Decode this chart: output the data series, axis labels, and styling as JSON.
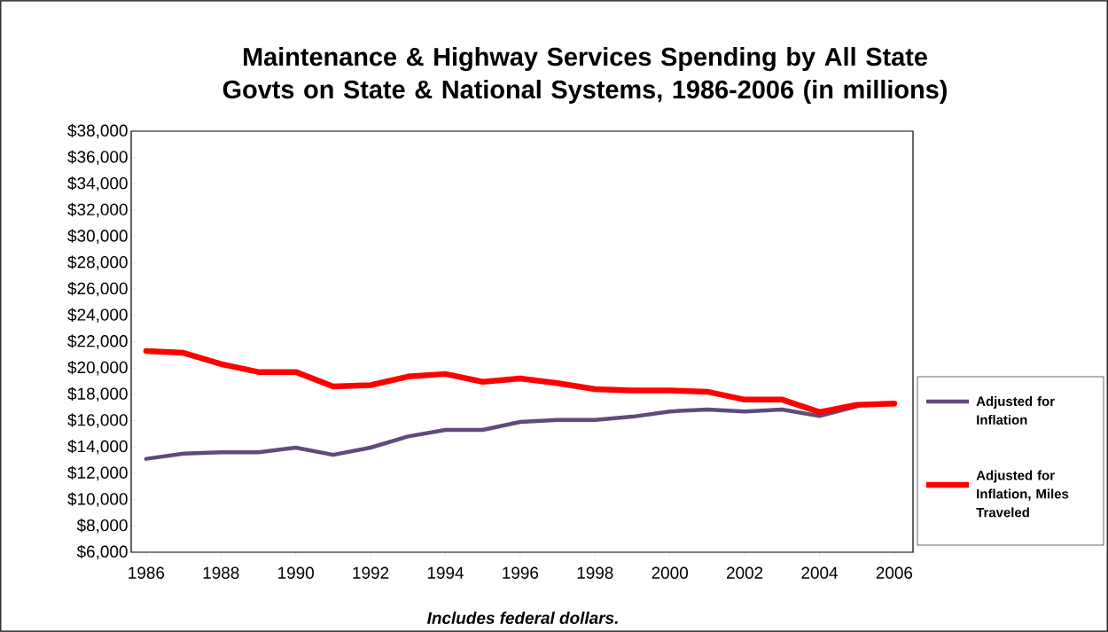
{
  "chart_data": {
    "type": "line",
    "title": "Maintenance & Highway Services Spending by All State Govts on State & National Systems, 1986-2006 (in millions)",
    "x": [
      1986,
      1987,
      1988,
      1989,
      1990,
      1991,
      1992,
      1993,
      1994,
      1995,
      1996,
      1997,
      1998,
      1999,
      2000,
      2001,
      2002,
      2003,
      2004,
      2005,
      2006
    ],
    "series": [
      {
        "name": "Adjusted for Inflation",
        "color": "#604a7b",
        "values": [
          13100,
          13500,
          13600,
          13600,
          13950,
          13400,
          13950,
          14800,
          15300,
          15300,
          15900,
          16050,
          16050,
          16300,
          16700,
          16850,
          16700,
          16850,
          16350,
          17100,
          null
        ]
      },
      {
        "name": "Adjusted for Inflation, Miles Traveled",
        "color": "#ff0000",
        "values": [
          21300,
          21150,
          20300,
          19700,
          19700,
          18600,
          18700,
          19350,
          19550,
          18950,
          19200,
          18850,
          18400,
          18300,
          18300,
          18200,
          17600,
          17600,
          16650,
          17200,
          17300
        ]
      }
    ],
    "xlim": [
      1985.6,
      2006.5
    ],
    "xticks": [
      1986,
      1988,
      1990,
      1992,
      1994,
      1996,
      1998,
      2000,
      2002,
      2004,
      2006
    ],
    "ylim": [
      6000,
      38000
    ],
    "yticks": [
      {
        "value": 6000,
        "label": "$6,000"
      },
      {
        "value": 8000,
        "label": "$8,000"
      },
      {
        "value": 10000,
        "label": "$10,000"
      },
      {
        "value": 12000,
        "label": "$12,000"
      },
      {
        "value": 14000,
        "label": "$14,000"
      },
      {
        "value": 16000,
        "label": "$16,000"
      },
      {
        "value": 18000,
        "label": "$18,000"
      },
      {
        "value": 20000,
        "label": "$20,000"
      },
      {
        "value": 22000,
        "label": "$22,000"
      },
      {
        "value": 24000,
        "label": "$24,000"
      },
      {
        "value": 26000,
        "label": "$26,000"
      },
      {
        "value": 28000,
        "label": "$28,000"
      },
      {
        "value": 30000,
        "label": "$30,000"
      },
      {
        "value": 32000,
        "label": "$32,000"
      },
      {
        "value": 34000,
        "label": "$34,000"
      },
      {
        "value": 36000,
        "label": "$36,000"
      },
      {
        "value": 38000,
        "label": "$38,000"
      }
    ],
    "annotations": [
      "Includes federal dollars."
    ],
    "legend": "right",
    "grid": false,
    "marker": "none",
    "line_style": "solid"
  }
}
